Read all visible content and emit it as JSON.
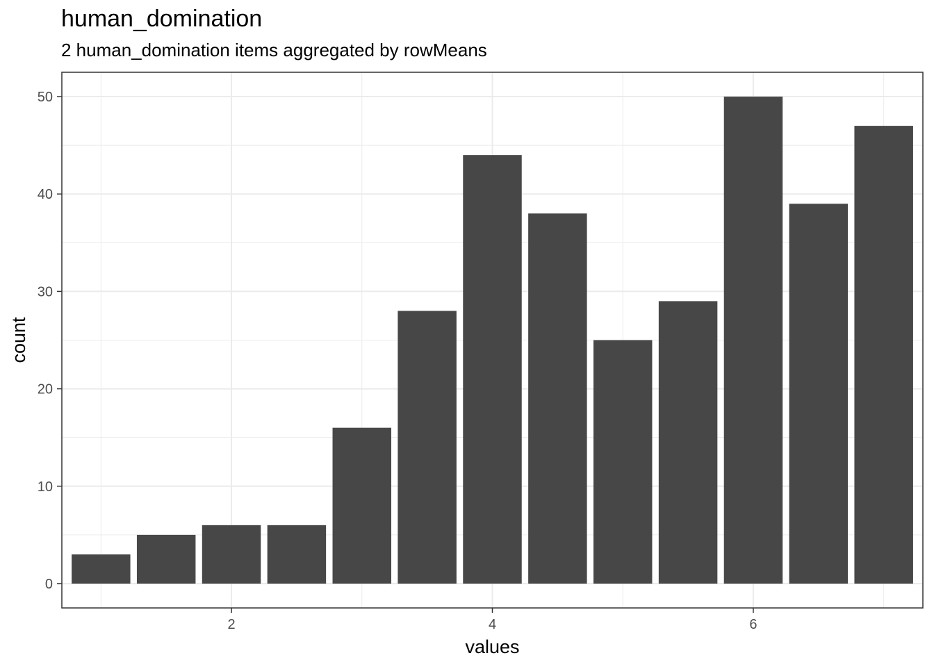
{
  "chart_data": {
    "type": "bar",
    "title": "human_domination",
    "subtitle": "2 human_domination items aggregated by rowMeans",
    "xlabel": "values",
    "ylabel": "count",
    "x": [
      1,
      1.5,
      2,
      2.5,
      3,
      3.5,
      4,
      4.5,
      5,
      5.5,
      6,
      6.5,
      7
    ],
    "values": [
      3,
      5,
      6,
      6,
      16,
      28,
      44,
      38,
      25,
      29,
      50,
      39,
      47
    ],
    "bar_width": 0.45,
    "xlim": [
      0.7,
      7.3
    ],
    "ylim": [
      -2.5,
      52.5
    ],
    "xticks": [
      2,
      4,
      6
    ],
    "yticks": [
      0,
      10,
      20,
      30,
      40,
      50
    ],
    "xtick_labels": [
      "2",
      "4",
      "6"
    ],
    "ytick_labels": [
      "0",
      "10",
      "20",
      "30",
      "40",
      "50"
    ],
    "grid": true,
    "theme": "bw",
    "bar_color": "#474747",
    "grid_color": "#ebebeb",
    "panel_border_color": "#333333"
  }
}
